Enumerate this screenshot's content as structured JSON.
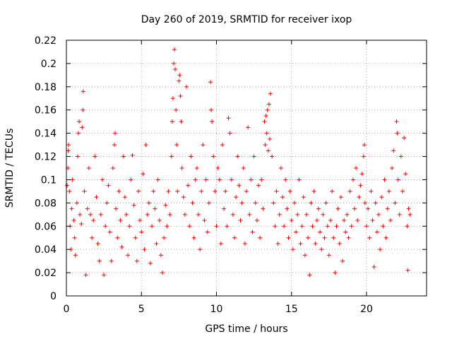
{
  "chart_data": {
    "type": "scatter",
    "title": "Day 260 of 2019, SRMTID for receiver ixop",
    "xlabel": "GPS time / hours",
    "ylabel": "SRMTID / TECUs",
    "xlim": [
      0,
      24
    ],
    "ylim": [
      0,
      0.22
    ],
    "xticks": [
      0,
      5,
      10,
      15,
      20
    ],
    "xtick_labels": [
      "0",
      "5",
      "10",
      "15",
      "20"
    ],
    "yticks": [
      0,
      0.02,
      0.04,
      0.06,
      0.08,
      0.1,
      0.12,
      0.14,
      0.16,
      0.18,
      0.2,
      0.22
    ],
    "ytick_labels": [
      "0",
      "0.02",
      "0.04",
      "0.06",
      "0.08",
      "0.1",
      "0.12",
      "0.14",
      "0.16",
      "0.18",
      "0.2",
      "0.22"
    ],
    "grid": true,
    "marker": "+",
    "series": [
      {
        "name": "SRMTID",
        "color": "#ff0000",
        "points": [
          [
            0.05,
            0.095
          ],
          [
            0.1,
            0.11
          ],
          [
            0.12,
            0.125
          ],
          [
            0.15,
            0.13
          ],
          [
            0.2,
            0.09
          ],
          [
            0.25,
            0.06
          ],
          [
            0.3,
            0.04
          ],
          [
            0.35,
            0.075
          ],
          [
            0.4,
            0.1
          ],
          [
            0.5,
            0.065
          ],
          [
            0.55,
            0.05
          ],
          [
            0.6,
            0.035
          ],
          [
            0.7,
            0.08
          ],
          [
            0.75,
            0.12
          ],
          [
            0.8,
            0.14
          ],
          [
            0.85,
            0.15
          ],
          [
            0.9,
            0.07
          ],
          [
            1.0,
            0.062
          ],
          [
            1.05,
            0.145
          ],
          [
            1.1,
            0.16
          ],
          [
            1.12,
            0.176
          ],
          [
            1.2,
            0.09
          ],
          [
            1.3,
            0.018
          ],
          [
            1.4,
            0.075
          ],
          [
            1.5,
            0.11
          ],
          [
            1.6,
            0.07
          ],
          [
            1.7,
            0.05
          ],
          [
            1.8,
            0.065
          ],
          [
            1.9,
            0.12
          ],
          [
            2.0,
            0.085
          ],
          [
            2.1,
            0.045
          ],
          [
            2.2,
            0.03
          ],
          [
            2.3,
            0.07
          ],
          [
            2.4,
            0.1
          ],
          [
            2.5,
            0.018
          ],
          [
            2.6,
            0.06
          ],
          [
            2.7,
            0.08
          ],
          [
            2.8,
            0.095
          ],
          [
            2.9,
            0.055
          ],
          [
            3.0,
            0.03
          ],
          [
            3.1,
            0.11
          ],
          [
            3.2,
            0.13
          ],
          [
            3.25,
            0.14
          ],
          [
            3.3,
            0.075
          ],
          [
            3.4,
            0.05
          ],
          [
            3.5,
            0.09
          ],
          [
            3.6,
            0.065
          ],
          [
            3.7,
            0.042
          ],
          [
            3.8,
            0.12
          ],
          [
            3.9,
            0.085
          ],
          [
            4.0,
            0.07
          ],
          [
            4.1,
            0.035
          ],
          [
            4.2,
            0.06
          ],
          [
            4.3,
            0.1
          ],
          [
            4.4,
            0.121
          ],
          [
            4.5,
            0.078
          ],
          [
            4.6,
            0.05
          ],
          [
            4.7,
            0.03
          ],
          [
            4.8,
            0.09
          ],
          [
            4.9,
            0.065
          ],
          [
            5.0,
            0.055
          ],
          [
            5.1,
            0.105
          ],
          [
            5.2,
            0.04
          ],
          [
            5.3,
            0.13
          ],
          [
            5.4,
            0.07
          ],
          [
            5.5,
            0.08
          ],
          [
            5.6,
            0.028
          ],
          [
            5.7,
            0.06
          ],
          [
            5.8,
            0.09
          ],
          [
            5.9,
            0.075
          ],
          [
            6.0,
            0.045
          ],
          [
            6.1,
            0.1
          ],
          [
            6.2,
            0.065
          ],
          [
            6.3,
            0.035
          ],
          [
            6.4,
            0.02
          ],
          [
            6.5,
            0.05
          ],
          [
            6.6,
            0.078
          ],
          [
            6.7,
            0.06
          ],
          [
            6.8,
            0.09
          ],
          [
            6.9,
            0.07
          ],
          [
            7.0,
            0.12
          ],
          [
            7.05,
            0.15
          ],
          [
            7.1,
            0.17
          ],
          [
            7.15,
            0.2
          ],
          [
            7.2,
            0.212
          ],
          [
            7.25,
            0.195
          ],
          [
            7.3,
            0.16
          ],
          [
            7.35,
            0.13
          ],
          [
            7.4,
            0.09
          ],
          [
            7.5,
            0.185
          ],
          [
            7.55,
            0.19
          ],
          [
            7.6,
            0.172
          ],
          [
            7.65,
            0.15
          ],
          [
            7.7,
            0.11
          ],
          [
            7.8,
            0.085
          ],
          [
            7.9,
            0.07
          ],
          [
            8.0,
            0.18
          ],
          [
            8.1,
            0.095
          ],
          [
            8.2,
            0.06
          ],
          [
            8.3,
            0.12
          ],
          [
            8.4,
            0.08
          ],
          [
            8.5,
            0.05
          ],
          [
            8.6,
            0.1
          ],
          [
            8.7,
            0.11
          ],
          [
            8.8,
            0.07
          ],
          [
            8.9,
            0.04
          ],
          [
            9.0,
            0.09
          ],
          [
            9.1,
            0.13
          ],
          [
            9.2,
            0.065
          ],
          [
            9.3,
            0.1
          ],
          [
            9.4,
            0.055
          ],
          [
            9.5,
            0.08
          ],
          [
            9.6,
            0.184
          ],
          [
            9.65,
            0.16
          ],
          [
            9.7,
            0.15
          ],
          [
            9.8,
            0.12
          ],
          [
            9.9,
            0.09
          ],
          [
            10.0,
            0.06
          ],
          [
            10.1,
            0.11
          ],
          [
            10.2,
            0.1
          ],
          [
            10.3,
            0.045
          ],
          [
            10.4,
            0.13
          ],
          [
            10.5,
            0.075
          ],
          [
            10.6,
            0.09
          ],
          [
            10.7,
            0.06
          ],
          [
            10.8,
            0.153
          ],
          [
            10.9,
            0.14
          ],
          [
            11.0,
            0.1
          ],
          [
            11.1,
            0.07
          ],
          [
            11.2,
            0.05
          ],
          [
            11.3,
            0.085
          ],
          [
            11.4,
            0.12
          ],
          [
            11.5,
            0.095
          ],
          [
            11.6,
            0.065
          ],
          [
            11.7,
            0.08
          ],
          [
            11.8,
            0.11
          ],
          [
            11.9,
            0.045
          ],
          [
            12.0,
            0.09
          ],
          [
            12.1,
            0.145
          ],
          [
            12.2,
            0.07
          ],
          [
            12.3,
            0.1
          ],
          [
            12.4,
            0.055
          ],
          [
            12.5,
            0.12
          ],
          [
            12.6,
            0.08
          ],
          [
            12.7,
            0.065
          ],
          [
            12.8,
            0.095
          ],
          [
            12.9,
            0.05
          ],
          [
            13.0,
            0.1
          ],
          [
            13.1,
            0.075
          ],
          [
            13.2,
            0.15
          ],
          [
            13.25,
            0.13
          ],
          [
            13.3,
            0.155
          ],
          [
            13.35,
            0.14
          ],
          [
            13.4,
            0.16
          ],
          [
            13.45,
            0.125
          ],
          [
            13.5,
            0.165
          ],
          [
            13.55,
            0.135
          ],
          [
            13.6,
            0.174
          ],
          [
            13.7,
            0.12
          ],
          [
            13.8,
            0.08
          ],
          [
            13.9,
            0.06
          ],
          [
            14.0,
            0.09
          ],
          [
            14.1,
            0.045
          ],
          [
            14.2,
            0.07
          ],
          [
            14.3,
            0.11
          ],
          [
            14.4,
            0.085
          ],
          [
            14.5,
            0.06
          ],
          [
            14.6,
            0.1
          ],
          [
            14.7,
            0.075
          ],
          [
            14.8,
            0.05
          ],
          [
            14.9,
            0.09
          ],
          [
            15.0,
            0.065
          ],
          [
            15.1,
            0.04
          ],
          [
            15.2,
            0.08
          ],
          [
            15.3,
            0.055
          ],
          [
            15.4,
            0.07
          ],
          [
            15.5,
            0.1
          ],
          [
            15.6,
            0.045
          ],
          [
            15.7,
            0.06
          ],
          [
            15.8,
            0.085
          ],
          [
            15.9,
            0.035
          ],
          [
            16.0,
            0.07
          ],
          [
            16.1,
            0.05
          ],
          [
            16.2,
            0.018
          ],
          [
            16.3,
            0.08
          ],
          [
            16.4,
            0.06
          ],
          [
            16.5,
            0.09
          ],
          [
            16.6,
            0.045
          ],
          [
            16.7,
            0.065
          ],
          [
            16.8,
            0.075
          ],
          [
            16.9,
            0.055
          ],
          [
            17.0,
            0.04
          ],
          [
            17.1,
            0.07
          ],
          [
            17.2,
            0.05
          ],
          [
            17.3,
            0.08
          ],
          [
            17.4,
            0.06
          ],
          [
            17.5,
            0.035
          ],
          [
            17.6,
            0.065
          ],
          [
            17.7,
            0.09
          ],
          [
            17.8,
            0.05
          ],
          [
            17.9,
            0.02
          ],
          [
            18.0,
            0.06
          ],
          [
            18.1,
            0.075
          ],
          [
            18.2,
            0.045
          ],
          [
            18.3,
            0.085
          ],
          [
            18.4,
            0.03
          ],
          [
            18.5,
            0.065
          ],
          [
            18.6,
            0.055
          ],
          [
            18.7,
            0.07
          ],
          [
            18.8,
            0.05
          ],
          [
            18.9,
            0.09
          ],
          [
            19.0,
            0.06
          ],
          [
            19.1,
            0.1
          ],
          [
            19.2,
            0.075
          ],
          [
            19.3,
            0.11
          ],
          [
            19.4,
            0.065
          ],
          [
            19.5,
            0.085
          ],
          [
            19.6,
            0.095
          ],
          [
            19.7,
            0.105
          ],
          [
            19.8,
            0.12
          ],
          [
            19.85,
            0.13
          ],
          [
            19.9,
            0.08
          ],
          [
            20.0,
            0.06
          ],
          [
            20.1,
            0.075
          ],
          [
            20.2,
            0.05
          ],
          [
            20.3,
            0.09
          ],
          [
            20.4,
            0.065
          ],
          [
            20.5,
            0.025
          ],
          [
            20.6,
            0.08
          ],
          [
            20.7,
            0.055
          ],
          [
            20.8,
            0.07
          ],
          [
            20.9,
            0.04
          ],
          [
            21.0,
            0.085
          ],
          [
            21.1,
            0.06
          ],
          [
            21.2,
            0.1
          ],
          [
            21.3,
            0.05
          ],
          [
            21.4,
            0.075
          ],
          [
            21.5,
            0.09
          ],
          [
            21.6,
            0.065
          ],
          [
            21.7,
            0.11
          ],
          [
            21.8,
            0.125
          ],
          [
            21.9,
            0.08
          ],
          [
            22.0,
            0.15
          ],
          [
            22.05,
            0.14
          ],
          [
            22.1,
            0.1
          ],
          [
            22.2,
            0.07
          ],
          [
            22.3,
            0.12
          ],
          [
            22.4,
            0.09
          ],
          [
            22.5,
            0.136
          ],
          [
            22.6,
            0.105
          ],
          [
            22.7,
            0.06
          ],
          [
            22.75,
            0.022
          ],
          [
            22.8,
            0.075
          ],
          [
            22.9,
            0.07
          ]
        ]
      }
    ]
  }
}
